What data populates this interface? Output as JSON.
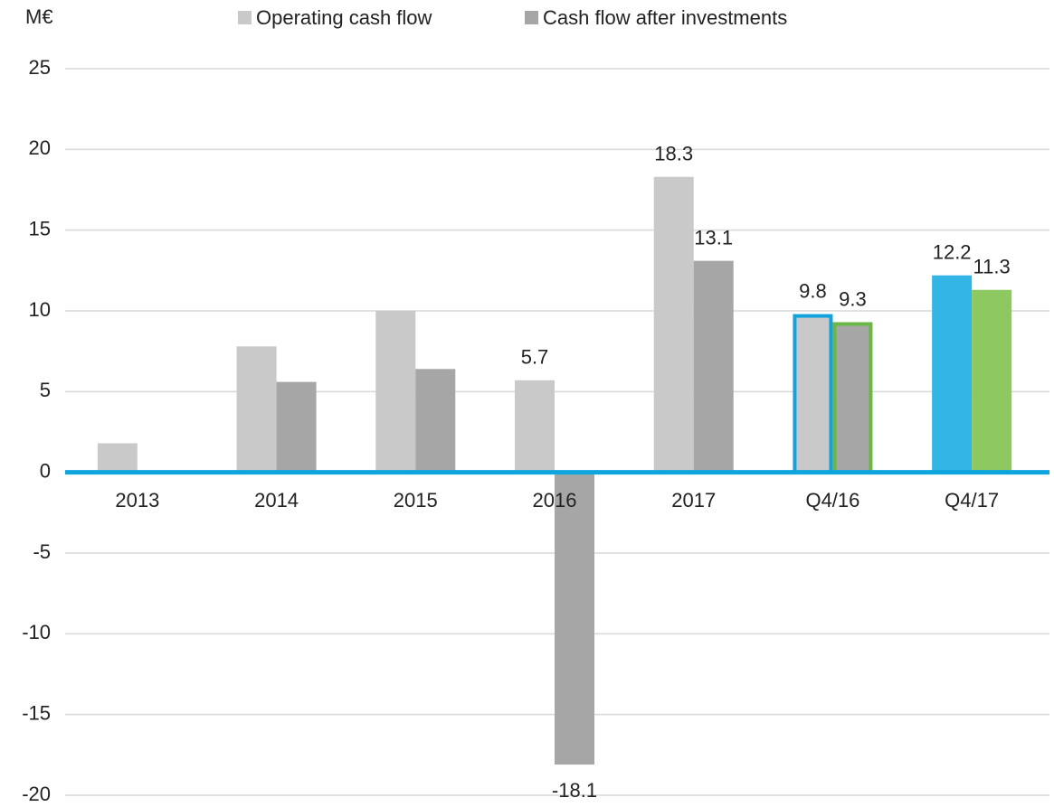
{
  "chart_data": {
    "type": "bar",
    "y_label": "M€",
    "categories": [
      "2013",
      "2014",
      "2015",
      "2016",
      "2017",
      "Q4/16",
      "Q4/17"
    ],
    "series": [
      {
        "name": "Operating cash flow",
        "color": "#c9c9c9",
        "values": [
          1.8,
          7.8,
          10.0,
          5.7,
          18.3,
          9.8,
          12.2
        ],
        "value_labels": [
          null,
          null,
          null,
          "5.7",
          "18.3",
          "9.8",
          "12.2"
        ],
        "point_fill": [
          null,
          null,
          null,
          null,
          null,
          null,
          "#33b6e6"
        ],
        "point_stroke": [
          null,
          null,
          null,
          null,
          null,
          "#12a3de",
          null
        ]
      },
      {
        "name": "Cash flow after investments",
        "color": "#a6a6a6",
        "values": [
          null,
          5.6,
          6.4,
          -18.1,
          13.1,
          9.3,
          11.3
        ],
        "value_labels": [
          null,
          null,
          null,
          "-18.1",
          "13.1",
          "9.3",
          "11.3"
        ],
        "point_fill": [
          null,
          null,
          null,
          null,
          null,
          null,
          "#8dc860"
        ],
        "point_stroke": [
          null,
          null,
          null,
          null,
          null,
          "#6ab844",
          null
        ]
      }
    ],
    "ylim": [
      -20,
      25
    ],
    "yticks": [
      -20,
      -15,
      -10,
      -5,
      0,
      5,
      10,
      15,
      20,
      25
    ],
    "grid": true,
    "zero_line_color": "#0ea5df",
    "legend": "top"
  }
}
